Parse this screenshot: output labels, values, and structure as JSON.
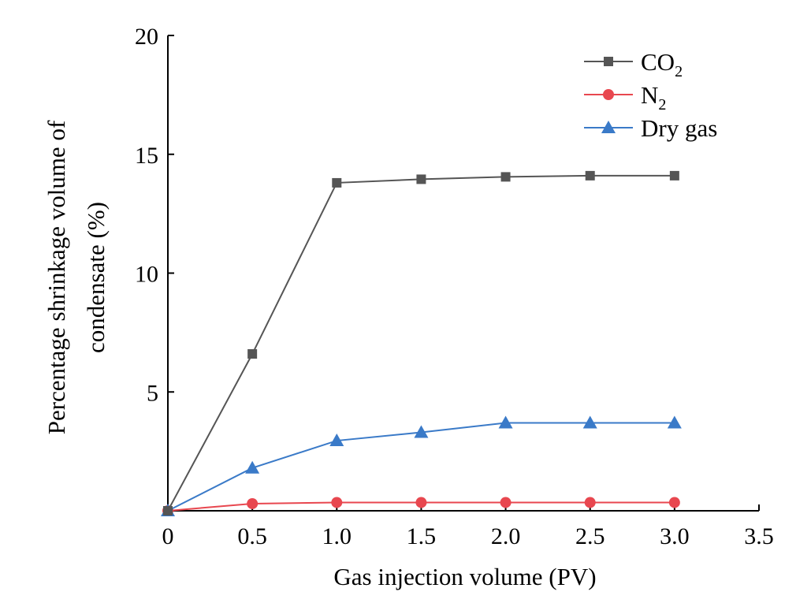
{
  "chart_data": {
    "type": "line",
    "title": "",
    "xlabel": "Gas injection volume (PV)",
    "ylabel_lines": [
      "Percentage shrinkage volume of",
      "condensate (%)"
    ],
    "xlim": [
      0,
      3.5
    ],
    "ylim": [
      0,
      20
    ],
    "x_ticks": [
      0,
      0.5,
      1.0,
      1.5,
      2.0,
      2.5,
      3.0,
      3.5
    ],
    "x_tick_labels": [
      "0",
      "0.5",
      "1.0",
      "1.5",
      "2.0",
      "2.5",
      "3.0",
      "3.5"
    ],
    "y_ticks": [
      5,
      10,
      15,
      20
    ],
    "y_tick_labels": [
      "5",
      "10",
      "15",
      "20"
    ],
    "grid": false,
    "legend_position": "top-right",
    "x": [
      0,
      0.5,
      1.0,
      1.5,
      2.0,
      2.5,
      3.0
    ],
    "series": [
      {
        "name": "CO2",
        "label_main": "CO",
        "label_sub": "2",
        "color": "#555555",
        "marker": "square",
        "values": [
          0,
          6.6,
          13.8,
          13.95,
          14.05,
          14.1,
          14.1
        ]
      },
      {
        "name": "N2",
        "label_main": "N",
        "label_sub": "2",
        "color": "#e8474f",
        "marker": "circle",
        "values": [
          0,
          0.3,
          0.35,
          0.35,
          0.35,
          0.35,
          0.35
        ]
      },
      {
        "name": "Dry gas",
        "label_main": "Dry gas",
        "label_sub": "",
        "color": "#3a7ac8",
        "marker": "triangle",
        "values": [
          0,
          1.8,
          2.95,
          3.3,
          3.7,
          3.7,
          3.7
        ]
      }
    ]
  }
}
